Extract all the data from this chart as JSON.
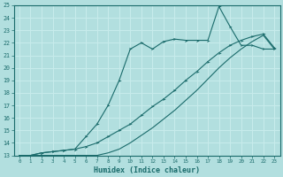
{
  "xlabel": "Humidex (Indice chaleur)",
  "bg_color": "#b2dfdf",
  "grid_color": "#c8ecec",
  "line_color": "#1a6b6b",
  "xlim": [
    -0.5,
    23.5
  ],
  "ylim": [
    13,
    25
  ],
  "xticks": [
    0,
    1,
    2,
    3,
    4,
    5,
    6,
    7,
    8,
    9,
    10,
    11,
    12,
    13,
    14,
    15,
    16,
    17,
    18,
    19,
    20,
    21,
    22,
    23
  ],
  "yticks": [
    13,
    14,
    15,
    16,
    17,
    18,
    19,
    20,
    21,
    22,
    23,
    24,
    25
  ],
  "line1_x": [
    0,
    1,
    2,
    3,
    4,
    5,
    6,
    7,
    8,
    9,
    10,
    11,
    12,
    13,
    14,
    15,
    16,
    17,
    18,
    19,
    20,
    21,
    22,
    23
  ],
  "line1_y": [
    13.0,
    13.0,
    13.2,
    13.3,
    13.4,
    13.5,
    13.7,
    14.0,
    14.5,
    15.0,
    15.5,
    16.2,
    16.9,
    17.5,
    18.2,
    19.0,
    19.7,
    20.5,
    21.2,
    21.8,
    22.2,
    22.5,
    22.7,
    21.6
  ],
  "line2_x": [
    0,
    1,
    2,
    3,
    4,
    5,
    6,
    7,
    8,
    9,
    10,
    11,
    12,
    13,
    14,
    15,
    16,
    17,
    18,
    19,
    20,
    21,
    22,
    23
  ],
  "line2_y": [
    13.0,
    13.0,
    13.0,
    13.0,
    13.0,
    13.0,
    13.0,
    13.0,
    13.2,
    13.5,
    14.0,
    14.6,
    15.2,
    15.9,
    16.6,
    17.4,
    18.2,
    19.1,
    20.0,
    20.8,
    21.5,
    22.1,
    22.6,
    21.5
  ],
  "line3_x": [
    0,
    1,
    2,
    3,
    4,
    5,
    6,
    7,
    8,
    9,
    10,
    11,
    12,
    13,
    14,
    15,
    16,
    17,
    18,
    19,
    20,
    21,
    22,
    23
  ],
  "line3_y": [
    13.0,
    13.0,
    13.2,
    13.3,
    13.4,
    13.5,
    14.5,
    15.5,
    17.0,
    19.0,
    21.5,
    22.0,
    21.5,
    22.1,
    22.3,
    22.2,
    22.2,
    22.2,
    24.9,
    23.3,
    21.8,
    21.8,
    21.5,
    21.5
  ]
}
